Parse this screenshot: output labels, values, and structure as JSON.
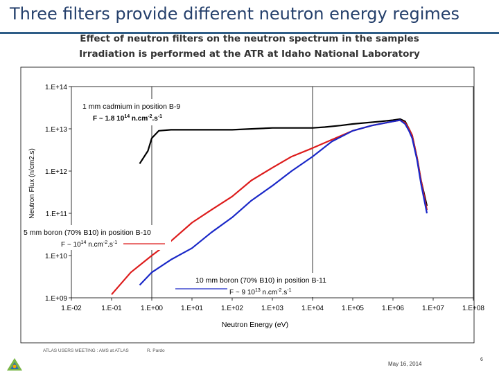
{
  "slide": {
    "title": "Three filters provide different neutron energy regimes",
    "subtitle_line1": "Effect of neutron filters on the neutron spectrum in the samples",
    "subtitle_line2": "Irradiation is performed at the ATR at Idaho National Laboratory"
  },
  "footer": {
    "meeting": "ATLAS USERS MEETING : AMS at ATLAS",
    "author": "R. Pardo",
    "date": "May 16, 2014",
    "page": "6"
  },
  "colors": {
    "title": "#243f6b",
    "rule": "#2e5d87",
    "cadmium": "#000000",
    "boron5": "#dd1c1c",
    "boron10": "#1a28c8"
  },
  "chart_data": {
    "type": "line",
    "xlabel": "Neutron Energy (eV)",
    "ylabel": "Neutron Flux (n/cm2.s)",
    "x_scale": "log",
    "y_scale": "log",
    "xlim": [
      0.01,
      100000000
    ],
    "ylim": [
      1000000000,
      100000000000000
    ],
    "x_ticks": [
      "1.E-02",
      "1.E-01",
      "1.E+00",
      "1.E+01",
      "1.E+02",
      "1.E+03",
      "1.E+04",
      "1.E+05",
      "1.E+06",
      "1.E+07",
      "1.E+08"
    ],
    "y_ticks": [
      "1.E+14",
      "1.E+13",
      "1.E+12",
      "1.E+11",
      "1.E+10",
      "1.E+09"
    ],
    "series": [
      {
        "name": "1 mm cadmium in position B-9",
        "color": "#000000",
        "x": [
          0.5,
          0.8,
          1,
          1.5,
          3,
          10,
          100,
          1000,
          10000,
          20000,
          50000,
          100000,
          500000,
          1000000,
          1500000,
          2000000,
          2500000,
          3000000,
          4000000,
          5000000,
          7000000
        ],
        "y": [
          1500000000000,
          3000000000000,
          6000000000000,
          9000000000000,
          9500000000000,
          9500000000000,
          9500000000000,
          10500000000000,
          10500000000000,
          11000000000000,
          12000000000000,
          13000000000000,
          15000000000000,
          16000000000000,
          17000000000000,
          15000000000000,
          10000000000000,
          7000000000000,
          2000000000000,
          600000000000,
          150000000000
        ]
      },
      {
        "name": "5 mm boron (70% B10) in position B-10",
        "color": "#dd1c1c",
        "x": [
          0.1,
          0.3,
          1,
          3,
          10,
          30,
          100,
          300,
          1000,
          3000,
          10000,
          30000,
          100000,
          300000,
          1000000,
          1500000,
          2000000,
          2500000,
          3000000,
          4000000,
          5000000,
          7000000
        ],
        "y": [
          1200000000,
          4000000000,
          10000000000,
          22000000000,
          60000000000,
          120000000000,
          250000000000,
          600000000000,
          1200000000000,
          2200000000000,
          3500000000000,
          5500000000000,
          9000000000000,
          12000000000000,
          15000000000000,
          16000000000000,
          14000000000000,
          10000000000000,
          7000000000000,
          2000000000000,
          600000000000,
          120000000000
        ]
      },
      {
        "name": "10 mm boron (70% B10) in position B-11",
        "color": "#1a28c8",
        "x": [
          0.5,
          1,
          3,
          10,
          30,
          100,
          300,
          1000,
          3000,
          10000,
          30000,
          100000,
          300000,
          1000000,
          1500000,
          2000000,
          2500000,
          3000000,
          4000000,
          5000000,
          7000000
        ],
        "y": [
          2000000000,
          4000000000,
          8000000000,
          15000000000,
          35000000000,
          80000000000,
          200000000000,
          450000000000,
          1000000000000,
          2200000000000,
          5000000000000,
          9000000000000,
          12000000000000,
          15000000000000,
          16000000000000,
          13000000000000,
          9000000000000,
          6000000000000,
          1800000000000,
          500000000000,
          100000000000
        ]
      }
    ],
    "annotations": [
      {
        "line1": "1 mm cadmium in position B-9",
        "flux_prefix": "F ~ 1.8 10",
        "flux_exp": "14",
        "unit_mid": " n.cm",
        "unit_exp1": "-2",
        "unit_mid2": ".s",
        "unit_exp2": "-1"
      },
      {
        "line1": "5 mm boron (70% B10) in position B-10",
        "flux_prefix": "F ~ 10",
        "flux_exp": "14",
        "unit_mid": " n.cm",
        "unit_exp1": "-2",
        "unit_mid2": ".s",
        "unit_exp2": "-1"
      },
      {
        "line1": "10 mm boron (70% B10) in position B-11",
        "flux_prefix": "F ~ 9 10",
        "flux_exp": "13",
        "unit_mid": " n.cm",
        "unit_exp1": "-2",
        "unit_mid2": ".s",
        "unit_exp2": "-1"
      }
    ],
    "grid": true,
    "legend": "inline annotations"
  }
}
